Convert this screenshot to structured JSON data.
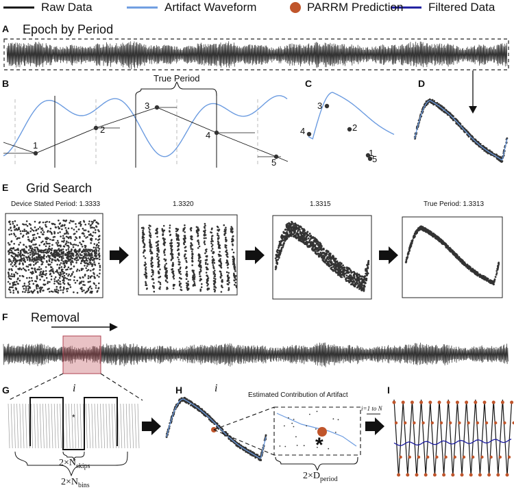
{
  "legend": [
    {
      "label": "Raw Data",
      "color": "#111111",
      "kind": "line"
    },
    {
      "label": "Artifact Waveform",
      "color": "#6b9be0",
      "kind": "line"
    },
    {
      "label": "PARRM Prediction",
      "color": "#c0552b",
      "kind": "dot"
    },
    {
      "label": "Filtered Data",
      "color": "#1a1a9e",
      "kind": "line"
    }
  ],
  "panels": {
    "A": {
      "letter": "A",
      "title": "Epoch by Period"
    },
    "B": {
      "letter": "B",
      "true_period": "True Period",
      "points": [
        "1",
        "2",
        "3",
        "4",
        "5"
      ]
    },
    "C": {
      "letter": "C",
      "points": [
        "1",
        "2",
        "3",
        "4",
        "5"
      ]
    },
    "D": {
      "letter": "D"
    },
    "E": {
      "letter": "E",
      "title": "Grid Search",
      "subplots": [
        {
          "label": "Device Stated Period: 1.3333"
        },
        {
          "label": "1.3320"
        },
        {
          "label": "1.3315"
        },
        {
          "label": "True Period: 1.3313"
        }
      ]
    },
    "F": {
      "letter": "F",
      "title": "Removal"
    },
    "G": {
      "letter": "G",
      "index": "i",
      "star": "*",
      "skips": "2×N",
      "skips_sub": "skips",
      "bins": "2×N",
      "bins_sub": "bins"
    },
    "H": {
      "letter": "H",
      "index": "i",
      "caption": "Estimated Contribution of Artifact",
      "star": "*",
      "dperiod": "2×D",
      "dperiod_sub": "period"
    },
    "I": {
      "letter": "I",
      "loop": "i=1 to N"
    }
  }
}
